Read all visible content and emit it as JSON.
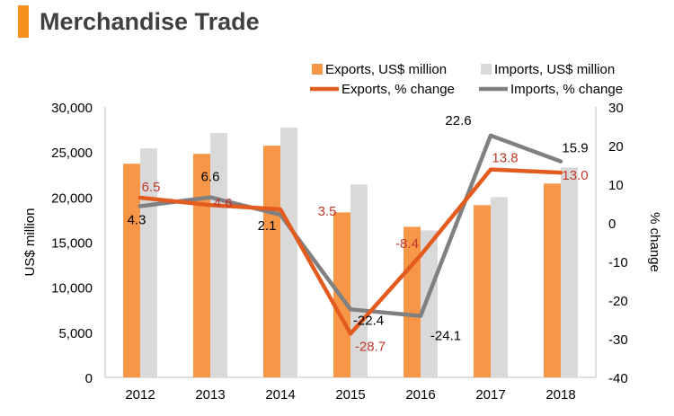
{
  "title": "Merchandise Trade",
  "chart_data": {
    "type": "bar",
    "categories": [
      "2012",
      "2013",
      "2014",
      "2015",
      "2016",
      "2017",
      "2018"
    ],
    "series": [
      {
        "name": "Exports, US$ million",
        "kind": "bar",
        "axis": "left",
        "color": "#f79646",
        "values": [
          23700,
          24800,
          25700,
          18300,
          16700,
          19100,
          21500
        ]
      },
      {
        "name": "Imports, US$ million",
        "kind": "bar",
        "axis": "left",
        "color": "#d9d9d9",
        "values": [
          25400,
          27100,
          27700,
          21400,
          16300,
          20000,
          23300
        ]
      },
      {
        "name": "Exports, % change",
        "kind": "line",
        "axis": "right",
        "color": "#e35b1e",
        "values": [
          6.5,
          4.6,
          3.5,
          -28.7,
          -8.4,
          13.8,
          13.0
        ],
        "labels": [
          "6.5",
          "4.6",
          "3.5",
          "-28.7",
          "-8.4",
          "13.8",
          "13.0"
        ]
      },
      {
        "name": "Imports, % change",
        "kind": "line",
        "axis": "right",
        "color": "#808080",
        "values": [
          4.3,
          6.6,
          2.1,
          -22.4,
          -24.1,
          22.6,
          15.9
        ],
        "labels": [
          "4.3",
          "6.6",
          "2.1",
          "-22.4",
          "-24.1",
          "22.6",
          "15.9"
        ]
      }
    ],
    "ylabel": "US$ million",
    "y2label": "% change",
    "ylim": [
      0,
      30000
    ],
    "y2lim": [
      -40,
      30
    ],
    "yticks": [
      "0",
      "5,000",
      "10,000",
      "15,000",
      "20,000",
      "25,000",
      "30,000"
    ],
    "y2ticks": [
      "-40",
      "-30",
      "-20",
      "-10",
      "0",
      "10",
      "20",
      "30"
    ],
    "legend_position": "top-right",
    "grid": false
  }
}
